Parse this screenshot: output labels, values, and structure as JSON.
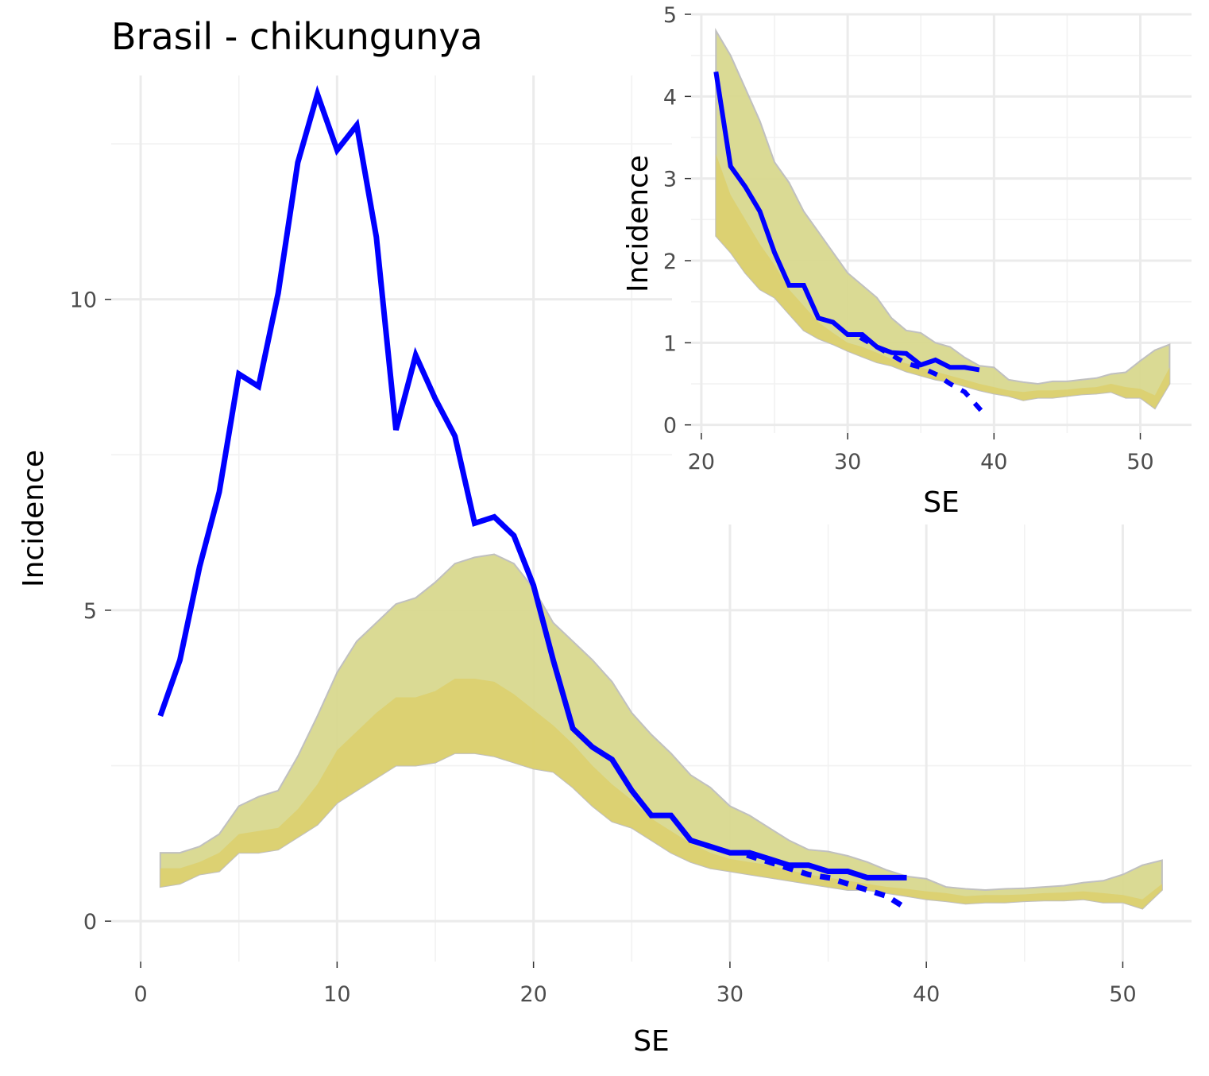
{
  "colors": {
    "observed_line": "#0000ff",
    "band_outer": "#d9d98f",
    "band_inner": "#dccf6e",
    "band_border": "#bdbdbd"
  },
  "chart_data": [
    {
      "id": "main",
      "type": "line",
      "title": "Brasil - chikungunya",
      "xlabel": "SE",
      "ylabel": "Incidence",
      "xlim": [
        -1.5,
        53.5
      ],
      "ylim": [
        -0.65,
        13.6
      ],
      "x_ticks": [
        0,
        10,
        20,
        30,
        40,
        50
      ],
      "y_ticks": [
        0,
        5,
        10
      ],
      "grid": true,
      "observed": {
        "x": [
          1,
          2,
          3,
          4,
          5,
          6,
          7,
          8,
          9,
          10,
          11,
          12,
          13,
          14,
          15,
          16,
          17,
          18,
          19,
          20,
          21,
          22,
          23,
          24,
          25,
          26,
          27,
          28,
          29,
          30,
          31,
          32,
          33,
          34,
          35,
          36,
          37,
          38,
          39
        ],
        "y": [
          3.3,
          4.2,
          5.7,
          6.9,
          8.8,
          8.6,
          10.1,
          12.2,
          13.3,
          12.4,
          12.8,
          11.0,
          7.9,
          9.1,
          8.4,
          7.8,
          6.4,
          6.5,
          6.2,
          5.4,
          4.2,
          3.1,
          2.8,
          2.6,
          2.1,
          1.7,
          1.7,
          1.3,
          1.2,
          1.1,
          1.1,
          1.0,
          0.9,
          0.9,
          0.8,
          0.8,
          0.7,
          0.7,
          0.7
        ]
      },
      "nowcast": {
        "x": [
          31,
          32,
          33,
          34,
          35,
          36,
          37,
          38,
          39
        ],
        "y": [
          1.05,
          0.95,
          0.85,
          0.75,
          0.7,
          0.6,
          0.5,
          0.4,
          0.2
        ]
      },
      "band": {
        "x": [
          1,
          2,
          3,
          4,
          5,
          6,
          7,
          8,
          9,
          10,
          11,
          12,
          13,
          14,
          15,
          16,
          17,
          18,
          19,
          20,
          21,
          22,
          23,
          24,
          25,
          26,
          27,
          28,
          29,
          30,
          31,
          32,
          33,
          34,
          35,
          36,
          37,
          38,
          39,
          40,
          41,
          42,
          43,
          44,
          45,
          46,
          47,
          48,
          49,
          50,
          51,
          52
        ],
        "lower": [
          0.55,
          0.6,
          0.75,
          0.8,
          1.1,
          1.1,
          1.15,
          1.35,
          1.55,
          1.9,
          2.1,
          2.3,
          2.5,
          2.5,
          2.55,
          2.7,
          2.7,
          2.65,
          2.55,
          2.45,
          2.4,
          2.15,
          1.85,
          1.6,
          1.5,
          1.3,
          1.1,
          0.95,
          0.85,
          0.8,
          0.75,
          0.7,
          0.65,
          0.6,
          0.55,
          0.5,
          0.5,
          0.45,
          0.4,
          0.35,
          0.32,
          0.28,
          0.3,
          0.3,
          0.32,
          0.33,
          0.33,
          0.35,
          0.3,
          0.3,
          0.2,
          0.5
        ],
        "mid_low": [
          0.85,
          0.85,
          0.95,
          1.1,
          1.4,
          1.45,
          1.5,
          1.8,
          2.2,
          2.75,
          3.05,
          3.35,
          3.6,
          3.6,
          3.7,
          3.9,
          3.9,
          3.85,
          3.65,
          3.4,
          3.15,
          2.85,
          2.5,
          2.2,
          1.95,
          1.65,
          1.45,
          1.25,
          1.1,
          1.0,
          0.95,
          0.9,
          0.82,
          0.75,
          0.7,
          0.65,
          0.6,
          0.55,
          0.52,
          0.48,
          0.45,
          0.4,
          0.42,
          0.42,
          0.43,
          0.45,
          0.46,
          0.48,
          0.45,
          0.42,
          0.35,
          0.6
        ],
        "upper": [
          1.1,
          1.1,
          1.2,
          1.4,
          1.85,
          2.0,
          2.1,
          2.65,
          3.3,
          4.0,
          4.5,
          4.8,
          5.1,
          5.2,
          5.45,
          5.75,
          5.85,
          5.9,
          5.75,
          5.35,
          4.8,
          4.5,
          4.2,
          3.85,
          3.35,
          3.0,
          2.7,
          2.35,
          2.15,
          1.85,
          1.7,
          1.5,
          1.3,
          1.15,
          1.12,
          1.05,
          0.95,
          0.82,
          0.72,
          0.68,
          0.55,
          0.52,
          0.5,
          0.52,
          0.53,
          0.55,
          0.57,
          0.62,
          0.65,
          0.75,
          0.9,
          0.98
        ]
      }
    },
    {
      "id": "inset",
      "type": "line",
      "title": "",
      "xlabel": "SE",
      "ylabel": "Incidence",
      "xlim": [
        19.3,
        53.5
      ],
      "ylim": [
        -0.1,
        5.0
      ],
      "x_ticks": [
        20,
        30,
        40,
        50
      ],
      "y_ticks": [
        0,
        1,
        2,
        3,
        4,
        5
      ],
      "grid": true,
      "observed": {
        "x": [
          21,
          22,
          23,
          24,
          25,
          26,
          27,
          28,
          29,
          30,
          31,
          32,
          33,
          34,
          35,
          36,
          37,
          38,
          39
        ],
        "y": [
          4.3,
          3.15,
          2.9,
          2.6,
          2.1,
          1.7,
          1.7,
          1.3,
          1.25,
          1.1,
          1.1,
          0.95,
          0.88,
          0.87,
          0.73,
          0.79,
          0.7,
          0.7,
          0.67
        ]
      },
      "nowcast": {
        "x": [
          31,
          32,
          33,
          34,
          35,
          36,
          37,
          38,
          39
        ],
        "y": [
          1.05,
          0.95,
          0.85,
          0.75,
          0.7,
          0.62,
          0.5,
          0.4,
          0.2
        ]
      },
      "band": {
        "x": [
          21,
          22,
          23,
          24,
          25,
          26,
          27,
          28,
          29,
          30,
          31,
          32,
          33,
          34,
          35,
          36,
          37,
          38,
          39,
          40,
          41,
          42,
          43,
          44,
          45,
          46,
          47,
          48,
          49,
          50,
          51,
          52
        ],
        "lower": [
          2.3,
          2.1,
          1.85,
          1.65,
          1.55,
          1.35,
          1.15,
          1.05,
          0.98,
          0.9,
          0.83,
          0.76,
          0.72,
          0.65,
          0.6,
          0.55,
          0.52,
          0.47,
          0.42,
          0.38,
          0.35,
          0.3,
          0.33,
          0.33,
          0.35,
          0.37,
          0.38,
          0.4,
          0.33,
          0.33,
          0.2,
          0.5
        ],
        "mid_low": [
          3.3,
          2.8,
          2.5,
          2.2,
          1.95,
          1.65,
          1.45,
          1.25,
          1.12,
          1.0,
          0.95,
          0.88,
          0.8,
          0.75,
          0.7,
          0.65,
          0.6,
          0.55,
          0.5,
          0.46,
          0.42,
          0.4,
          0.42,
          0.42,
          0.43,
          0.45,
          0.46,
          0.5,
          0.46,
          0.44,
          0.36,
          0.7
        ],
        "upper": [
          4.8,
          4.5,
          4.1,
          3.7,
          3.2,
          2.95,
          2.6,
          2.35,
          2.1,
          1.85,
          1.7,
          1.55,
          1.3,
          1.15,
          1.12,
          1.0,
          0.95,
          0.82,
          0.72,
          0.7,
          0.55,
          0.52,
          0.5,
          0.53,
          0.53,
          0.55,
          0.57,
          0.62,
          0.64,
          0.78,
          0.91,
          0.98
        ]
      }
    }
  ]
}
